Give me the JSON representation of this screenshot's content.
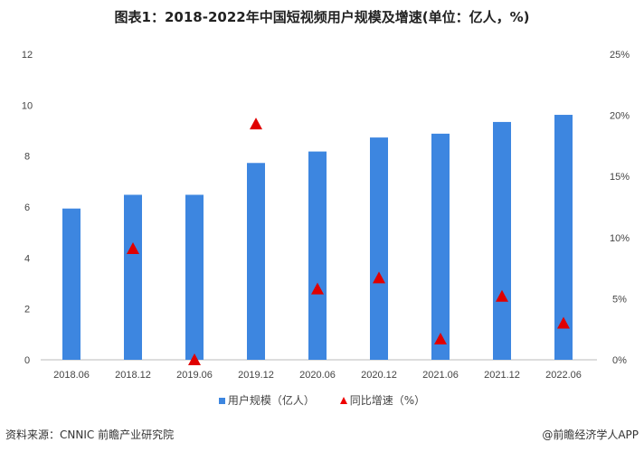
{
  "chart_data": {
    "type": "bar",
    "title": "图表1：2018-2022年中国短视频用户规模及增速(单位：亿人，%)",
    "categories": [
      "2018.06",
      "2018.12",
      "2019.06",
      "2019.12",
      "2020.06",
      "2020.12",
      "2021.06",
      "2021.12",
      "2022.06"
    ],
    "series": [
      {
        "name": "用户规模（亿人）",
        "type": "bar",
        "axis": "left",
        "color": "#3d86e0",
        "values": [
          5.94,
          6.48,
          6.48,
          7.73,
          8.18,
          8.73,
          8.88,
          9.34,
          9.62
        ]
      },
      {
        "name": "同比增速（%）",
        "type": "scatter",
        "marker": "triangle",
        "axis": "right",
        "color": "#e00000",
        "values": [
          null,
          9.1,
          0.0,
          19.3,
          5.8,
          6.7,
          1.7,
          5.2,
          3.0
        ]
      }
    ],
    "left_axis": {
      "ylim": [
        0,
        12
      ],
      "ticks": [
        "0",
        "2",
        "4",
        "6",
        "8",
        "10",
        "12"
      ]
    },
    "right_axis": {
      "ylim": [
        0,
        25
      ],
      "ticks": [
        "0%",
        "5%",
        "10%",
        "15%",
        "20%",
        "25%"
      ]
    },
    "grid": false,
    "legend_position": "bottom"
  },
  "footer": {
    "source": "资料来源：CNNIC 前瞻产业研究院",
    "credit": "@前瞻经济学人APP"
  },
  "watermark": "前瞻产业研究院"
}
